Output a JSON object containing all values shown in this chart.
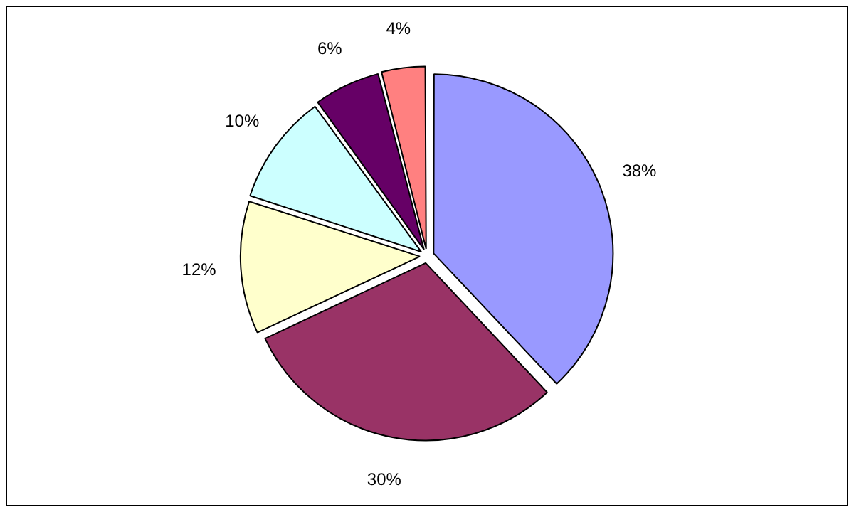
{
  "chart_data": {
    "type": "pie",
    "categories": [
      null,
      null,
      null,
      null,
      null,
      null
    ],
    "values": [
      38,
      30,
      12,
      10,
      6,
      4
    ],
    "colors": [
      "#9999ff",
      "#993366",
      "#ffffcc",
      "#ccffff",
      "#660066",
      "#ff8080"
    ],
    "value_labels": [
      "38%",
      "30%",
      "12%",
      "10%",
      "6%",
      "4%"
    ],
    "legend": false
  }
}
